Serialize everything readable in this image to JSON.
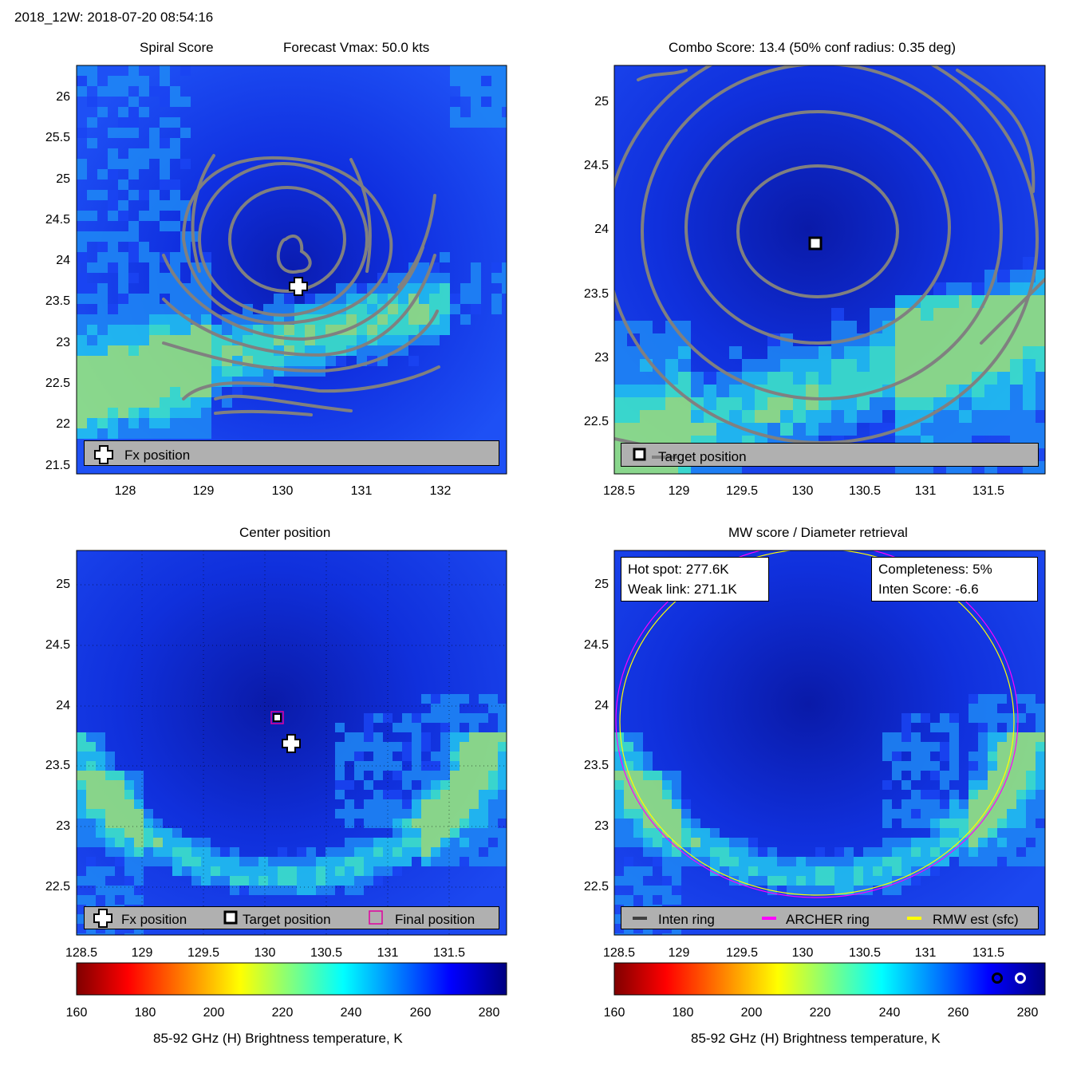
{
  "header": {
    "title": "2018_12W: 2018-07-20 08:54:16"
  },
  "panels": {
    "spiral": {
      "title_left": "Spiral Score",
      "title_right": "Forecast Vmax: 50.0 kts",
      "yticks": [
        "26",
        "25.5",
        "25",
        "24.5",
        "24",
        "23.5",
        "23",
        "22.5",
        "22",
        "21.5"
      ],
      "xticks": [
        "128",
        "129",
        "130",
        "131",
        "132"
      ],
      "legend": "Fx position"
    },
    "combo": {
      "title": "Combo Score: 13.4  (50% conf radius: 0.35 deg)",
      "yticks": [
        "25",
        "24.5",
        "24",
        "23.5",
        "23",
        "22.5"
      ],
      "xticks": [
        "128.5",
        "129",
        "129.5",
        "130",
        "130.5",
        "131",
        "131.5"
      ],
      "legend": "Target position"
    },
    "center": {
      "title": "Center position",
      "yticks": [
        "25",
        "24.5",
        "24",
        "23.5",
        "23",
        "22.5"
      ],
      "xticks": [
        "128.5",
        "129",
        "129.5",
        "130",
        "130.5",
        "131",
        "131.5"
      ],
      "legend": {
        "fx": "Fx position",
        "target": "Target position",
        "final": "Final position"
      }
    },
    "mw": {
      "title": "MW score / Diameter retrieval",
      "yticks": [
        "25",
        "24.5",
        "24",
        "23.5",
        "23",
        "22.5"
      ],
      "xticks": [
        "128.5",
        "129",
        "129.5",
        "130",
        "130.5",
        "131",
        "131.5"
      ],
      "hot_spot": "Hot spot: 277.6K",
      "weak_link": "Weak link: 271.1K",
      "completeness": "Completeness: 5%",
      "inten_score": "Inten Score: -6.6",
      "legend": {
        "inten": "Inten ring",
        "archer": "ARCHER ring",
        "rmw": "RMW est (sfc)"
      }
    }
  },
  "colorbar": {
    "ticks": [
      "160",
      "180",
      "200",
      "220",
      "240",
      "260",
      "280"
    ],
    "label": "85-92 GHz (H) Brightness temperature, K"
  },
  "chart_data": [
    {
      "type": "heatmap",
      "title": "Spiral Score",
      "subtitle": "Forecast Vmax: 50.0 kts",
      "xlim": [
        127.4,
        132.8
      ],
      "ylim": [
        21.4,
        26.4
      ],
      "markers": [
        {
          "name": "Fx position",
          "lon": 130.2,
          "lat": 23.7
        }
      ]
    },
    {
      "type": "heatmap",
      "title": "Combo Score: 13.4  (50% conf radius: 0.35 deg)",
      "xlim": [
        128.45,
        131.95
      ],
      "ylim": [
        22.2,
        25.3
      ],
      "markers": [
        {
          "name": "Target position",
          "lon": 130.1,
          "lat": 23.9
        }
      ]
    },
    {
      "type": "heatmap",
      "title": "Center position",
      "xlim": [
        128.45,
        131.95
      ],
      "ylim": [
        22.2,
        25.3
      ],
      "markers": [
        {
          "name": "Target position",
          "lon": 130.1,
          "lat": 23.9
        },
        {
          "name": "Fx position",
          "lon": 130.2,
          "lat": 23.7
        },
        {
          "name": "Final position",
          "lon": 130.1,
          "lat": 23.9
        }
      ]
    },
    {
      "type": "heatmap",
      "title": "MW score / Diameter retrieval",
      "xlim": [
        128.45,
        131.95
      ],
      "ylim": [
        22.2,
        25.3
      ],
      "hot_spot_K": 277.6,
      "weak_link_K": 271.1,
      "completeness_pct": 5,
      "inten_score": -6.6,
      "rings": [
        {
          "name": "ARCHER ring",
          "color": "#ff00ff"
        },
        {
          "name": "RMW est (sfc)",
          "color": "#ffff00"
        }
      ]
    }
  ],
  "colors": {
    "bg_blue": "#1a3cf0",
    "dark_blue": "#0a18a8",
    "contour": "#808080",
    "legend_gray": "#b0b0b0",
    "archer": "#ff00ff",
    "rmw": "#ffff00"
  }
}
